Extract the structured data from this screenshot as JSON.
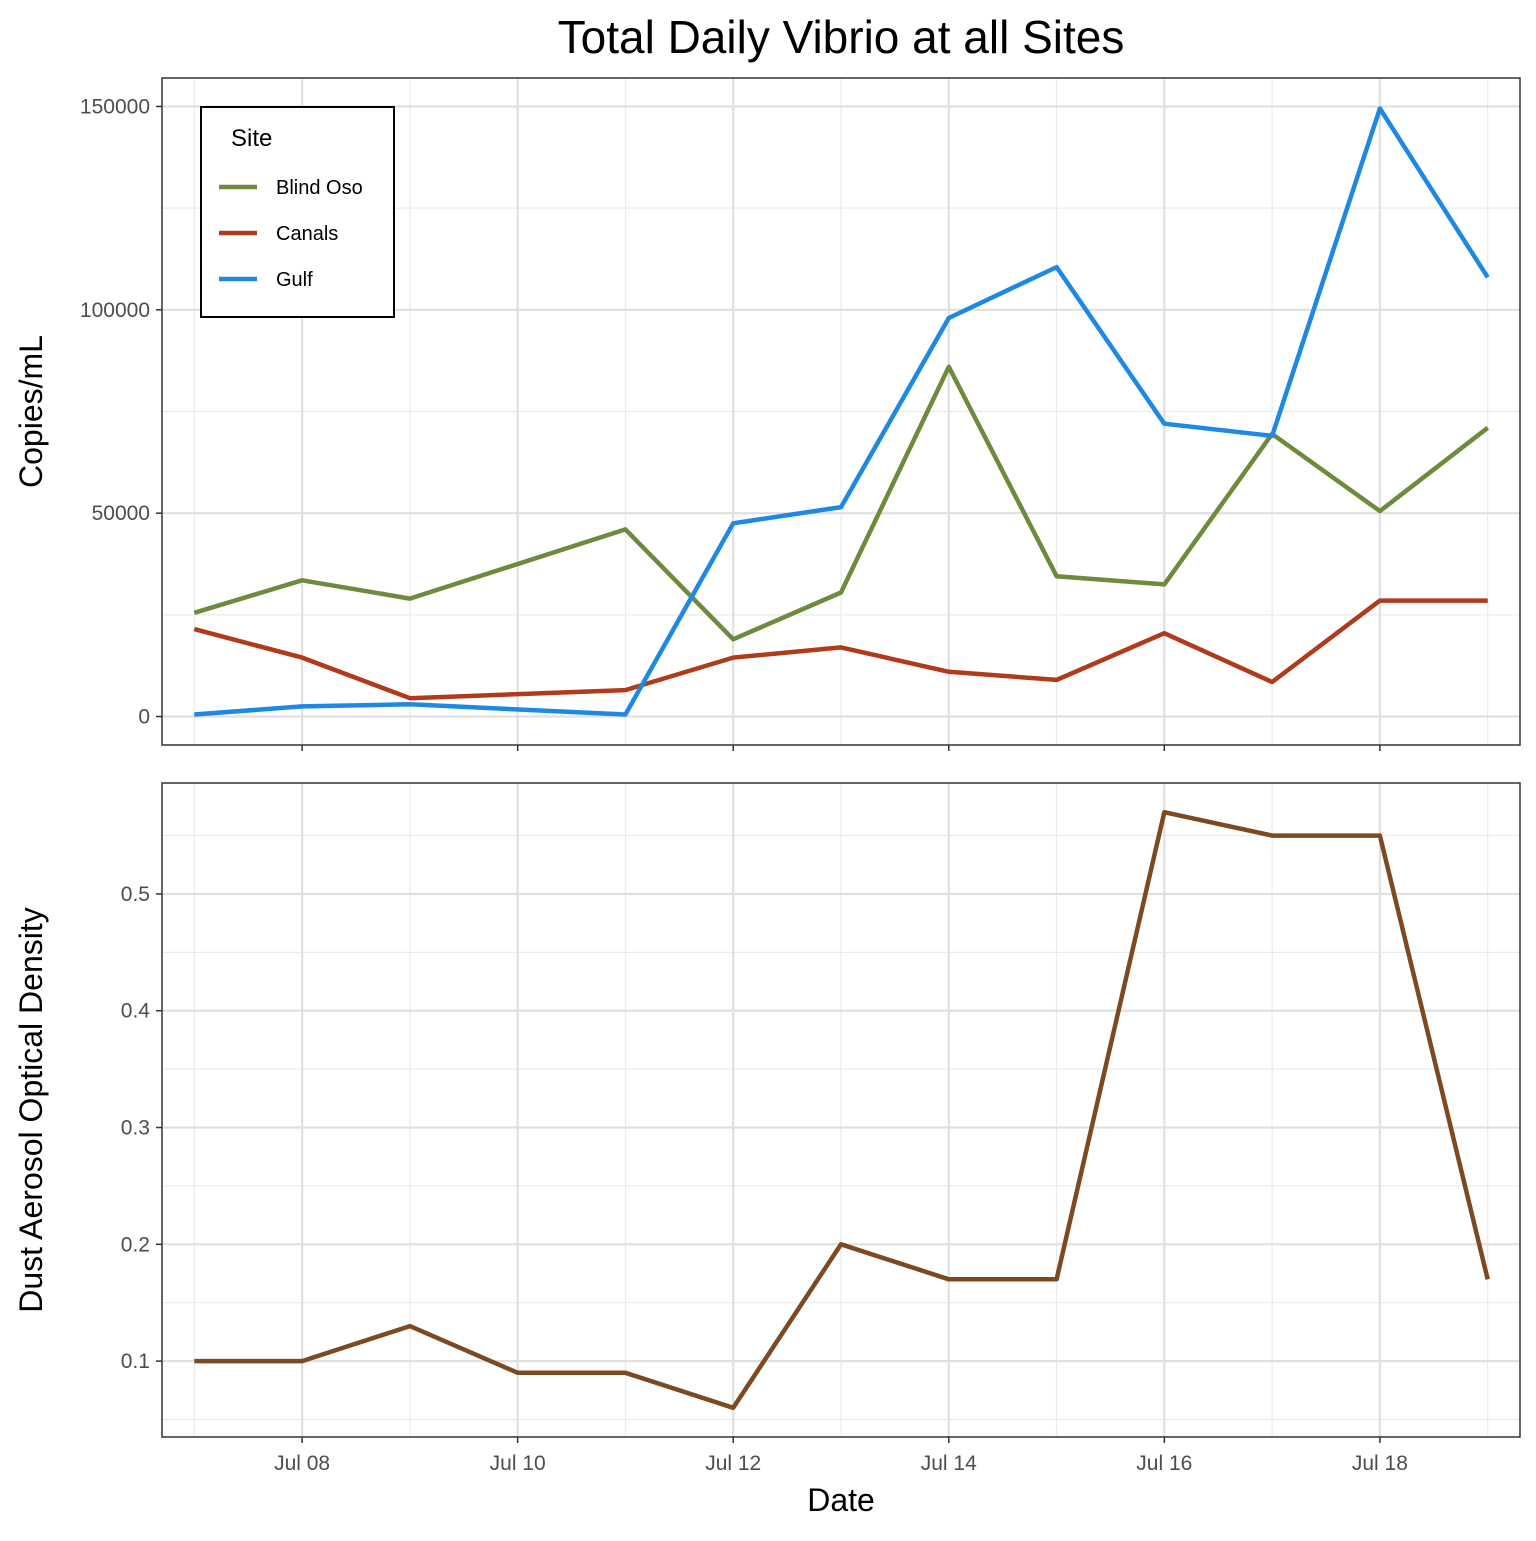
{
  "chart_data": [
    {
      "type": "line",
      "title": "Total Daily Vibrio at all Sites",
      "xlabel": "",
      "ylabel": "Copies/mL",
      "x": [
        "Jul 07",
        "Jul 08",
        "Jul 09",
        "Jul 11",
        "Jul 12",
        "Jul 13",
        "Jul 14",
        "Jul 15",
        "Jul 16",
        "Jul 17",
        "Jul 18",
        "Jul 19"
      ],
      "x_ticks": [
        "Jul 08",
        "Jul 10",
        "Jul 12",
        "Jul 14",
        "Jul 16",
        "Jul 18"
      ],
      "y_ticks": [
        0,
        50000,
        100000,
        150000
      ],
      "ylim": [
        -7000,
        157000
      ],
      "grid": true,
      "legend": {
        "title": "Site",
        "placement": "top-left"
      },
      "series": [
        {
          "name": "Blind Oso",
          "color": "#6E8B3D",
          "values": [
            25500,
            33500,
            29000,
            46000,
            19000,
            30500,
            86000,
            34500,
            32500,
            69500,
            50500,
            71000
          ]
        },
        {
          "name": "Canals",
          "color": "#B03A1A",
          "values": [
            21500,
            14500,
            4500,
            6500,
            14500,
            17000,
            11000,
            9000,
            20500,
            8500,
            28500,
            28500
          ]
        },
        {
          "name": "Gulf",
          "color": "#1E88E5",
          "values": [
            500,
            2500,
            3000,
            500,
            47500,
            51500,
            98000,
            110500,
            72000,
            69000,
            149500,
            108000
          ]
        }
      ]
    },
    {
      "type": "line",
      "title": "",
      "xlabel": "Date",
      "ylabel": "Dust Aerosol Optical Density",
      "x": [
        "Jul 07",
        "Jul 08",
        "Jul 09",
        "Jul 10",
        "Jul 11",
        "Jul 12",
        "Jul 13",
        "Jul 14",
        "Jul 15",
        "Jul 16",
        "Jul 17",
        "Jul 18",
        "Jul 19"
      ],
      "x_ticks": [
        "Jul 08",
        "Jul 10",
        "Jul 12",
        "Jul 14",
        "Jul 16",
        "Jul 18"
      ],
      "y_ticks": [
        0.1,
        0.2,
        0.3,
        0.4,
        0.5
      ],
      "ylim": [
        0.035,
        0.595
      ],
      "grid": true,
      "series": [
        {
          "color": "#7B4A22",
          "values": [
            0.1,
            0.1,
            0.13,
            0.09,
            0.09,
            0.06,
            0.2,
            0.17,
            0.17,
            0.57,
            0.55,
            0.55,
            0.17
          ]
        }
      ]
    }
  ]
}
